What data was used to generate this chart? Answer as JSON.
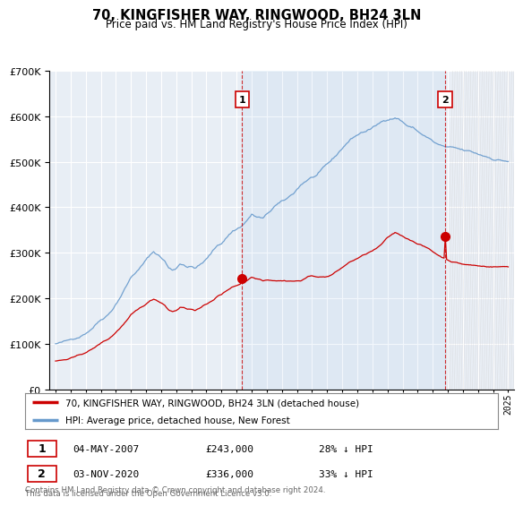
{
  "title": "70, KINGFISHER WAY, RINGWOOD, BH24 3LN",
  "subtitle": "Price paid vs. HM Land Registry's House Price Index (HPI)",
  "background_color": "#ffffff",
  "plot_bg_color": "#e8eef5",
  "grid_color": "#ffffff",
  "sale1": {
    "date_year": 2007.37,
    "price": 243000,
    "label": "1",
    "date_str": "04-MAY-2007",
    "pct": "28% ↓ HPI"
  },
  "sale2": {
    "date_year": 2020.83,
    "price": 336000,
    "label": "2",
    "date_str": "03-NOV-2020",
    "pct": "33% ↓ HPI"
  },
  "legend_line1": "70, KINGFISHER WAY, RINGWOOD, BH24 3LN (detached house)",
  "legend_line2": "HPI: Average price, detached house, New Forest",
  "footer1": "Contains HM Land Registry data © Crown copyright and database right 2024.",
  "footer2": "This data is licensed under the Open Government Licence v3.0.",
  "sale_color": "#cc0000",
  "hpi_color": "#6699cc",
  "dashed_color": "#cc0000",
  "marker_color": "#cc0000",
  "ylim_max": 700000,
  "ylim_min": 0,
  "hpi_values": [
    100000,
    101000,
    102500,
    104000,
    107000,
    111000,
    115000,
    120000,
    126000,
    133000,
    141000,
    150000,
    158000,
    165000,
    172000,
    183000,
    196000,
    210000,
    225000,
    240000,
    255000,
    265000,
    272000,
    282000,
    292000,
    302000,
    310000,
    305000,
    298000,
    290000,
    275000,
    270000,
    275000,
    285000,
    285000,
    280000,
    280000,
    278000,
    282000,
    288000,
    295000,
    305000,
    315000,
    325000,
    330000,
    340000,
    350000,
    358000,
    362000,
    368000,
    375000,
    385000,
    395000,
    390000,
    388000,
    385000,
    392000,
    400000,
    410000,
    415000,
    418000,
    422000,
    428000,
    435000,
    445000,
    455000,
    462000,
    468000,
    472000,
    475000,
    480000,
    488000,
    495000,
    502000,
    510000,
    520000,
    530000,
    540000,
    548000,
    555000,
    560000,
    565000,
    568000,
    572000,
    575000,
    580000,
    585000,
    590000,
    595000,
    598000,
    600000,
    598000,
    592000,
    585000,
    580000,
    578000,
    570000,
    565000,
    560000,
    555000,
    548000,
    542000,
    538000,
    535000,
    532000,
    530000,
    528000,
    525000,
    522000,
    520000,
    518000,
    515000,
    512000,
    510000,
    508000,
    506000,
    504000,
    503000,
    502000,
    501000,
    500000
  ],
  "red_values": [
    62000,
    63000,
    64000,
    65000,
    67000,
    69000,
    72000,
    75000,
    79000,
    83000,
    88000,
    93000,
    99000,
    104000,
    108000,
    115000,
    123000,
    132000,
    141000,
    150000,
    160000,
    166000,
    171000,
    177000,
    183000,
    189000,
    194000,
    191000,
    187000,
    182000,
    172000,
    169000,
    172000,
    179000,
    179000,
    175000,
    175000,
    174000,
    177000,
    181000,
    185000,
    191000,
    197000,
    204000,
    207000,
    213000,
    219000,
    224000,
    227000,
    231000,
    235000,
    241000,
    247000,
    244000,
    243000,
    241000,
    243000,
    243000,
    243000,
    243000,
    243000,
    243000,
    243000,
    243000,
    243000,
    243000,
    248000,
    252000,
    253000,
    253000,
    252000,
    252000,
    253000,
    256000,
    261000,
    266000,
    272000,
    278000,
    284000,
    288000,
    292000,
    296000,
    300000,
    304000,
    308000,
    312000,
    318000,
    326000,
    334000,
    340000,
    345000,
    342000,
    338000,
    334000,
    330000,
    328000,
    323000,
    320000,
    315000,
    311000,
    305000,
    300000,
    295000,
    291000,
    288000,
    285000,
    283000,
    281000,
    279000,
    278000,
    277000,
    276000,
    275000,
    274000,
    274000,
    274000,
    274000,
    274000,
    274000,
    274000,
    274000
  ]
}
